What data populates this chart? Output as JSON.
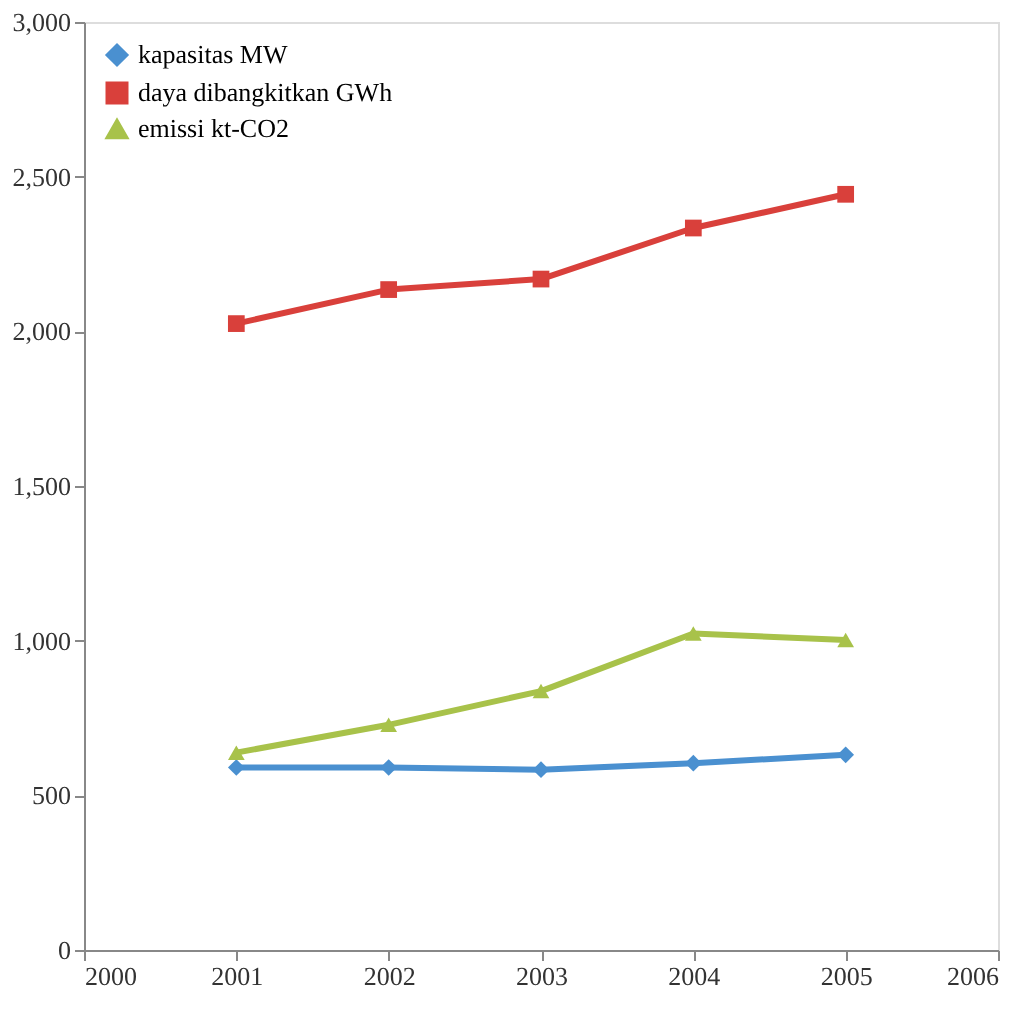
{
  "chart_data": {
    "type": "line",
    "x": [
      2001,
      2002,
      2003,
      2004,
      2005
    ],
    "series": [
      {
        "name": "kapasitas MW",
        "color": "#4a90d0",
        "marker": "diamond",
        "values": [
          590,
          590,
          583,
          604,
          631
        ]
      },
      {
        "name": "daya dibangkitkan GWh",
        "color": "#d9403b",
        "marker": "square",
        "values": [
          2025,
          2135,
          2169,
          2334,
          2443
        ]
      },
      {
        "name": "emissi kt-CO2",
        "color": "#a8c24a",
        "marker": "triangle",
        "values": [
          638,
          728,
          837,
          1023,
          1002
        ]
      }
    ],
    "xlim": [
      2000,
      2006
    ],
    "xticks": [
      2000,
      2001,
      2002,
      2003,
      2004,
      2005,
      2006
    ],
    "ylim": [
      0,
      3000
    ],
    "yticks": [
      0,
      500,
      {
        "value": 1000,
        "label": "1,000"
      },
      {
        "value": 1500,
        "label": "1,500"
      },
      {
        "value": 2000,
        "label": "2,000"
      },
      {
        "value": 2500,
        "label": "2,500"
      },
      {
        "value": 3000,
        "label": "3,000"
      }
    ],
    "grid": false,
    "legend": "top left"
  }
}
